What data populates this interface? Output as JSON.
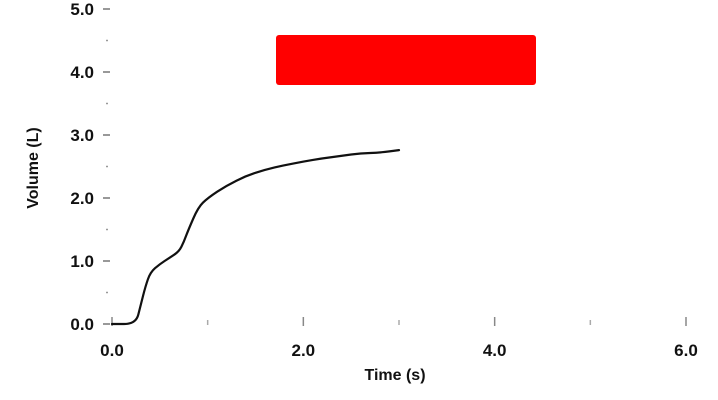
{
  "chart_data": {
    "type": "line",
    "title": "",
    "xlabel": "Time (s)",
    "ylabel": "Volume (L)",
    "xlim": [
      0,
      6
    ],
    "ylim": [
      0,
      5
    ],
    "x_ticks": [
      {
        "value": 0,
        "label": "0.0"
      },
      {
        "value": 2,
        "label": "2.0"
      },
      {
        "value": 4,
        "label": "4.0"
      },
      {
        "value": 6,
        "label": "6.0"
      }
    ],
    "x_minor_ticks": [
      1,
      3,
      5
    ],
    "y_ticks": [
      {
        "value": 0,
        "label": "0.0"
      },
      {
        "value": 1,
        "label": "1.0"
      },
      {
        "value": 2,
        "label": "2.0"
      },
      {
        "value": 3,
        "label": "3.0"
      },
      {
        "value": 4,
        "label": "4.0"
      },
      {
        "value": 5,
        "label": "5.0"
      }
    ],
    "y_minor_ticks": [
      0.5,
      1.5,
      2.5,
      3.5,
      4.5
    ],
    "grid": false,
    "legend": "none",
    "series": [
      {
        "color": "#111111",
        "x": [
          0.0,
          0.25,
          0.3,
          0.35,
          0.4,
          0.5,
          0.6,
          0.7,
          0.75,
          0.8,
          0.9,
          1.0,
          1.2,
          1.4,
          1.6,
          1.8,
          2.0,
          2.2,
          2.4,
          2.6,
          2.8,
          3.0
        ],
        "y": [
          0.0,
          0.0,
          0.3,
          0.6,
          0.82,
          0.95,
          1.05,
          1.15,
          1.3,
          1.5,
          1.85,
          2.0,
          2.2,
          2.35,
          2.45,
          2.52,
          2.58,
          2.63,
          2.67,
          2.71,
          2.72,
          2.76
        ]
      }
    ]
  },
  "redaction": {
    "color": "#ff0000"
  }
}
